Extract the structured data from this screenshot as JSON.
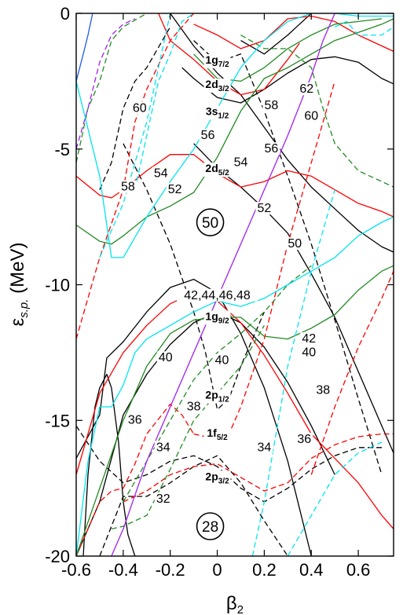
{
  "chart_data": {
    "type": "line",
    "xlabel": "β2",
    "xlabel_parts": {
      "base": "β",
      "sub": "2"
    },
    "ylabel": "εs.p. (MeV)",
    "ylabel_parts": {
      "base": "ε",
      "sub": "s.p.",
      "rest": " (MeV)"
    },
    "xlim": [
      -0.6,
      0.75
    ],
    "ylim": [
      -20,
      0
    ],
    "x_ticks": [
      -0.6,
      -0.4,
      -0.2,
      0,
      0.2,
      0.4,
      0.6
    ],
    "x_tick_labels": [
      "-0.6",
      "-0.4",
      "-0.2",
      "0",
      "0.2",
      "0.4",
      "0.6"
    ],
    "y_ticks": [
      0,
      -5,
      -10,
      -15,
      -20
    ],
    "y_tick_labels": [
      "0",
      "-5",
      "-10",
      "-15",
      "-20"
    ],
    "grid": false,
    "legend": "none",
    "orbital_labels": [
      {
        "base": "1g",
        "sub": "7/2",
        "x": 0,
        "y": -1.85
      },
      {
        "base": "2d",
        "sub": "3/2",
        "x": 0,
        "y": -2.75
      },
      {
        "base": "3s",
        "sub": "1/2",
        "x": 0,
        "y": -3.75
      },
      {
        "base": "2d",
        "sub": "5/2",
        "x": 0,
        "y": -5.85
      },
      {
        "base": "1g",
        "sub": "9/2",
        "x": 0,
        "y": -11.3
      },
      {
        "base": "2p",
        "sub": "1/2",
        "x": 0,
        "y": -14.2
      },
      {
        "base": "1f",
        "sub": "5/2",
        "x": 0,
        "y": -15.6
      },
      {
        "base": "2p",
        "sub": "3/2",
        "x": 0,
        "y": -17.2
      }
    ],
    "magic_numbers": [
      {
        "text": "60",
        "x": -0.33,
        "y": -3.6
      },
      {
        "text": "58",
        "x": 0.23,
        "y": -3.5
      },
      {
        "text": "62",
        "x": 0.38,
        "y": -2.9
      },
      {
        "text": "60",
        "x": 0.4,
        "y": -3.9
      },
      {
        "text": "56",
        "x": -0.04,
        "y": -4.6
      },
      {
        "text": "56",
        "x": 0.23,
        "y": -5.1
      },
      {
        "text": "54",
        "x": 0.1,
        "y": -5.6
      },
      {
        "text": "54",
        "x": -0.24,
        "y": -6.0
      },
      {
        "text": "58",
        "x": -0.38,
        "y": -6.5
      },
      {
        "text": "52",
        "x": -0.18,
        "y": -6.6
      },
      {
        "text": "52",
        "x": 0.2,
        "y": -7.3
      },
      {
        "text": "50",
        "x": 0.33,
        "y": -8.6
      },
      {
        "text": "42,44,46,48",
        "x": 0,
        "y": -10.5
      },
      {
        "text": "42",
        "x": 0.39,
        "y": -12.1
      },
      {
        "text": "40",
        "x": 0.39,
        "y": -12.6
      },
      {
        "text": "40",
        "x": -0.22,
        "y": -12.8
      },
      {
        "text": "40",
        "x": 0.02,
        "y": -12.9
      },
      {
        "text": "38",
        "x": 0.45,
        "y": -14.0
      },
      {
        "text": "38",
        "x": -0.1,
        "y": -14.6
      },
      {
        "text": "36",
        "x": -0.35,
        "y": -15.1
      },
      {
        "text": "36",
        "x": 0.37,
        "y": -15.8
      },
      {
        "text": "34",
        "x": -0.23,
        "y": -16.1
      },
      {
        "text": "34",
        "x": 0.2,
        "y": -16.1
      },
      {
        "text": "32",
        "x": -0.23,
        "y": -18.0
      }
    ],
    "circled_magic": [
      {
        "text": "50",
        "x": -0.03,
        "y": -7.7
      },
      {
        "text": "28",
        "x": -0.03,
        "y": -18.9
      }
    ],
    "series": [
      {
        "color": "#000000",
        "dash": false,
        "x": [
          -0.6,
          -0.5,
          -0.47,
          -0.4,
          -0.3,
          -0.2,
          -0.1,
          0,
          0.1,
          0.2,
          0.3,
          0.4
        ],
        "y": [
          -16.4,
          -14.8,
          -12.7,
          -12.1,
          -11.0,
          -10.1,
          -9.8,
          -10.3,
          -11.8,
          -13.8,
          -16.5,
          -20.0
        ]
      },
      {
        "color": "#000000",
        "dash": false,
        "x": [
          -0.6,
          -0.5,
          -0.4,
          -0.3,
          -0.2,
          -0.1,
          0,
          0.1,
          0.2,
          0.3,
          0.4,
          0.5
        ],
        "y": [
          -20.0,
          -18.0,
          -14.8,
          -13.3,
          -12.2,
          -11.4,
          -11.0,
          -11.4,
          -12.3,
          -13.6,
          -15.2,
          -17.0
        ]
      },
      {
        "color": "#000000",
        "dash": false,
        "x": [
          -0.57,
          -0.55,
          -0.52,
          -0.5,
          -0.47,
          -0.45,
          -0.42,
          -0.4,
          -0.38,
          -0.35
        ],
        "y": [
          -20.0,
          -17.0,
          -14.5,
          -13.8,
          -13.3,
          -13.8,
          -15.8,
          -18.0,
          -19.2,
          -20.0
        ]
      },
      {
        "color": "#000000",
        "dash": false,
        "x": [
          -0.1,
          0,
          0.1,
          0.2,
          0.3,
          0.4,
          0.5,
          0.6,
          0.7,
          0.75
        ],
        "y": [
          -4.8,
          -5.7,
          -6.4,
          -7.2,
          -8.1,
          -9.6,
          -11.2,
          -13.2,
          -15.2,
          -16.2
        ]
      },
      {
        "color": "#000000",
        "dash": false,
        "x": [
          -0.2,
          -0.1,
          0,
          0.1,
          0.2,
          0.3,
          0.4,
          0.5,
          0.6,
          0.7,
          0.75
        ],
        "y": [
          0.0,
          -1.2,
          -2.2,
          -3.0,
          -4.2,
          -5.4,
          -6.4,
          -7.2,
          -8.0,
          -8.6,
          -8.8
        ]
      },
      {
        "color": "#000000",
        "dash": false,
        "x": [
          -0.15,
          -0.1,
          0,
          0.1,
          0.2,
          0.3,
          0.4,
          0.5,
          0.6,
          0.7,
          0.75
        ],
        "y": [
          -2.0,
          -2.4,
          -3.1,
          -3.3,
          -2.8,
          -2.2,
          -1.7,
          -1.6,
          -1.8,
          -2.4,
          -2.6
        ]
      },
      {
        "color": "#000000",
        "dash": false,
        "x": [
          0.1,
          0.2,
          0.3,
          0.35,
          0.4,
          0.45,
          0.5
        ],
        "y": [
          -1.0,
          -1.5,
          -0.8,
          -0.4,
          0.0,
          0.3,
          0.6
        ]
      },
      {
        "color": "#000000",
        "dash": true,
        "x": [
          -0.4,
          -0.3,
          -0.2,
          -0.1,
          -0.05,
          0,
          0.05,
          0.1,
          0.2
        ],
        "y": [
          -4.8,
          -6.5,
          -8.5,
          -11.0,
          -12.5,
          -14.6,
          -14.2,
          -13.0,
          -11.0
        ]
      },
      {
        "color": "#000000",
        "dash": true,
        "x": [
          -0.1,
          0,
          0.1,
          0.2,
          0.3,
          0.4,
          0.5,
          0.6,
          0.7
        ],
        "y": [
          -1.0,
          -1.8,
          -1.5,
          -3.6,
          -6.0,
          -8.5,
          -11.3,
          -14.2,
          -17.0
        ]
      },
      {
        "color": "#000000",
        "dash": true,
        "x": [
          -0.6,
          -0.5,
          -0.4,
          -0.3,
          -0.2,
          -0.1,
          0,
          0.1,
          0.2,
          0.3,
          0.4,
          0.5,
          0.6,
          0.7
        ],
        "y": [
          -15.2,
          -16.5,
          -17.3,
          -17.0,
          -16.5,
          -16.3,
          -16.7,
          -17.5,
          -18.0,
          -17.5,
          -16.8,
          -16.3,
          -16.0,
          -16.0
        ]
      },
      {
        "color": "#000000",
        "dash": true,
        "x": [
          -0.5,
          -0.4,
          -0.3,
          -0.2,
          -0.1,
          0,
          0.1,
          0.2,
          0.3
        ],
        "y": [
          -20.0,
          -17.8,
          -17.8,
          -17.3,
          -16.7,
          -16.3,
          -17.3,
          -18.7,
          -20.0
        ]
      },
      {
        "color": "#000000",
        "dash": true,
        "x": [
          -0.5,
          -0.45,
          -0.4,
          -0.35,
          -0.3,
          -0.2
        ],
        "y": [
          -6.5,
          -5.5,
          -3.5,
          -2.5,
          -2.0,
          -0.5
        ]
      },
      {
        "color": "#ff0000",
        "dash": false,
        "x": [
          -0.6,
          -0.5,
          -0.4,
          -0.3,
          -0.2,
          -0.1,
          0,
          0.1,
          0.2,
          0.3,
          0.4,
          0.5,
          0.6,
          0.7,
          0.75
        ],
        "y": [
          -17.0,
          -14.0,
          -12.5,
          -11.5,
          -10.7,
          -10.3,
          -10.6,
          -11.4,
          -12.6,
          -14.0,
          -15.5,
          -16.4,
          -17.3,
          -18.5,
          -19.0
        ]
      },
      {
        "color": "#ff0000",
        "dash": false,
        "x": [
          -0.6,
          -0.5,
          -0.45,
          -0.4,
          -0.3,
          -0.2,
          -0.1,
          0,
          0.1,
          0.2,
          0.3,
          0.4,
          0.5,
          0.6,
          0.7,
          0.75
        ],
        "y": [
          -6.0,
          -6.7,
          -6.8,
          -6.5,
          -5.8,
          -5.2,
          -5.2,
          -5.9,
          -6.4,
          -6.2,
          -5.8,
          -6.0,
          -6.5,
          -7.0,
          -7.3,
          -7.5
        ]
      },
      {
        "color": "#ff0000",
        "dash": false,
        "x": [
          -0.25,
          -0.2,
          -0.1,
          0,
          0.1,
          0.2,
          0.3,
          0.35
        ],
        "y": [
          0.0,
          -1.0,
          -1.7,
          -2.5,
          -3.0,
          -2.8,
          -1.7,
          -1.1
        ]
      },
      {
        "color": "#ff0000",
        "dash": false,
        "x": [
          -0.1,
          0,
          0.1,
          0.2,
          0.3,
          0.4,
          0.5,
          0.6,
          0.7,
          0.75
        ],
        "y": [
          -0.4,
          -0.8,
          -1.3,
          -1.0,
          -0.2,
          -0.1,
          -0.3,
          -0.8,
          -1.2,
          -1.4
        ]
      },
      {
        "color": "#ff0000",
        "dash": true,
        "x": [
          -0.6,
          -0.5,
          -0.4,
          -0.35,
          -0.3,
          -0.2,
          -0.1
        ],
        "y": [
          -12.0,
          -9.0,
          -6.5,
          -4.0,
          -2.8,
          -1.0,
          0.0
        ]
      },
      {
        "color": "#ff0000",
        "dash": true,
        "x": [
          -0.4,
          -0.3,
          -0.2,
          -0.1,
          0,
          0.1,
          0.2,
          0.3,
          0.4,
          0.5,
          0.6,
          0.7,
          0.75
        ],
        "y": [
          -18.0,
          -17.6,
          -17.0,
          -16.7,
          -16.6,
          -17.1,
          -17.6,
          -17.3,
          -16.4,
          -15.9,
          -15.6,
          -15.5,
          -15.5
        ]
      },
      {
        "color": "#ff0000",
        "dash": true,
        "x": [
          -0.6,
          -0.5,
          -0.45,
          -0.4,
          -0.35,
          -0.3,
          -0.2,
          -0.15,
          -0.1
        ],
        "y": [
          -20.0,
          -18.0,
          -17.6,
          -17.5,
          -16.6,
          -15.5,
          -14.4,
          -14.8,
          -15.5
        ]
      },
      {
        "color": "#ff0000",
        "dash": true,
        "x": [
          -0.1,
          0,
          0.05,
          0.1,
          0.2,
          0.3,
          0.4,
          0.5
        ],
        "y": [
          -15.5,
          -15.7,
          -15.5,
          -14.5,
          -12.0,
          -8.5,
          -5.5,
          -2.5
        ]
      },
      {
        "color": "#ff0000",
        "dash": true,
        "x": [
          0.4,
          0.5,
          0.6,
          0.7,
          0.75
        ],
        "y": [
          -17.0,
          -14.5,
          -12.3,
          -10.5,
          -9.5
        ]
      },
      {
        "color": "#228b22",
        "dash": false,
        "x": [
          -0.6,
          -0.5,
          -0.45,
          -0.4,
          -0.3,
          -0.2,
          -0.1,
          0,
          0.1,
          0.2,
          0.3,
          0.4,
          0.5,
          0.6,
          0.7,
          0.75
        ],
        "y": [
          -7.8,
          -8.4,
          -8.5,
          -8.2,
          -7.5,
          -7.1,
          -6.6,
          -5.3,
          -3.6,
          -2.4,
          -2.0,
          -1.5,
          -1.0,
          -0.7,
          -0.4,
          -0.2
        ]
      },
      {
        "color": "#228b22",
        "dash": false,
        "x": [
          -0.6,
          -0.5,
          -0.4,
          -0.3,
          -0.2,
          -0.1,
          0,
          0.1,
          0.2,
          0.3,
          0.4,
          0.5,
          0.6,
          0.7,
          0.75
        ],
        "y": [
          -20.0,
          -17.5,
          -15.0,
          -13.0,
          -11.8,
          -11.3,
          -11.2,
          -11.2,
          -11.9,
          -12.0,
          -11.6,
          -11.1,
          -10.2,
          -9.5,
          -9.3
        ]
      },
      {
        "color": "#228b22",
        "dash": false,
        "x": [
          -0.1,
          0,
          0.1,
          0.2,
          0.3,
          0.4,
          0.5,
          0.6,
          0.7
        ],
        "y": [
          -1.5,
          -2.4,
          -2.5,
          -2.0,
          -1.3,
          -0.8,
          -0.4,
          -0.3,
          -0.2
        ]
      },
      {
        "color": "#228b22",
        "dash": true,
        "x": [
          -0.4,
          -0.3,
          -0.2,
          -0.1,
          0,
          0.1,
          0.2,
          0.3,
          0.4
        ],
        "y": [
          -18.0,
          -16.5,
          -15.0,
          -13.5,
          -12.5,
          -11.8,
          -11.0,
          -10.0,
          -9.3
        ]
      },
      {
        "color": "#228b22",
        "dash": true,
        "x": [
          -0.45,
          -0.4,
          -0.3,
          -0.2,
          -0.1,
          0,
          0.1,
          0.2
        ],
        "y": [
          -19.0,
          -18.9,
          -18.5,
          -16.8,
          -15.0,
          -14.0,
          -13.0,
          -11.5
        ]
      },
      {
        "color": "#228b22",
        "dash": true,
        "x": [
          -0.6,
          -0.55,
          -0.5,
          -0.45,
          -0.4,
          -0.3
        ],
        "y": [
          -5.5,
          -3.5,
          -2.5,
          -1.0,
          -0.5,
          0.0
        ]
      },
      {
        "color": "#228b22",
        "dash": true,
        "x": [
          0.1,
          0.2,
          0.3,
          0.4,
          0.45,
          0.5,
          0.6,
          0.7,
          0.75
        ],
        "y": [
          -0.8,
          -1.3,
          -1.3,
          -2.0,
          -3.5,
          -4.8,
          -5.8,
          -6.2,
          -6.4
        ]
      },
      {
        "color": "#00e5ee",
        "dash": false,
        "x": [
          -0.6,
          -0.5,
          -0.45,
          -0.4,
          -0.3,
          -0.2,
          -0.1,
          0,
          0.1,
          0.2,
          0.3,
          0.4,
          0.5,
          0.6,
          0.7,
          0.75
        ],
        "y": [
          -2.5,
          -6.0,
          -9.0,
          -9.0,
          -7.5,
          -6.2,
          -5.0,
          -3.5,
          -2.0,
          -1.0,
          -0.3,
          0.0,
          0.0,
          -0.1,
          -0.1,
          -0.1
        ]
      },
      {
        "color": "#00e5ee",
        "dash": false,
        "x": [
          -0.6,
          -0.55,
          -0.5,
          -0.45,
          -0.4,
          -0.35,
          -0.3,
          -0.2,
          -0.1,
          0,
          0.1,
          0.2,
          0.3,
          0.4,
          0.5,
          0.6,
          0.7,
          0.75
        ],
        "y": [
          -20.0,
          -16.5,
          -14.5,
          -14.5,
          -13.7,
          -12.5,
          -12.0,
          -11.5,
          -11.0,
          -10.6,
          -10.8,
          -10.5,
          -10.0,
          -9.5,
          -9.0,
          -8.2,
          -7.7,
          -7.5
        ]
      },
      {
        "color": "#00e5ee",
        "dash": true,
        "x": [
          -0.5,
          -0.4,
          -0.3,
          -0.25,
          -0.2
        ],
        "y": [
          -9.0,
          -7.0,
          -4.0,
          -2.0,
          0.0
        ]
      },
      {
        "color": "#00e5ee",
        "dash": true,
        "x": [
          -0.35,
          -0.3,
          -0.25,
          -0.2,
          -0.15,
          -0.1
        ],
        "y": [
          -6.5,
          -4.5,
          -2.5,
          -1.5,
          -0.3,
          0.0
        ]
      },
      {
        "color": "#00e5ee",
        "dash": true,
        "x": [
          0.3,
          0.4,
          0.5,
          0.6,
          0.7
        ],
        "y": [
          -20.0,
          -18.5,
          -17.0,
          -16.2,
          -15.8
        ]
      },
      {
        "color": "#00e5ee",
        "dash": true,
        "x": [
          0.15,
          0.2,
          0.25,
          0.3,
          0.4,
          0.5
        ],
        "y": [
          -20.0,
          -18.0,
          -15.5,
          -13.0,
          -9.5,
          -6.5
        ]
      },
      {
        "color": "#00e5ee",
        "dash": true,
        "x": [
          0.5,
          0.55,
          0.6,
          0.7,
          0.75
        ],
        "y": [
          -0.5,
          -0.3,
          -0.8,
          -0.8,
          -0.5
        ]
      },
      {
        "color": "#a020f0",
        "dash": false,
        "x": [
          -0.45,
          -0.4,
          -0.3,
          -0.2,
          -0.1,
          0,
          0.1,
          0.2,
          0.3,
          0.4,
          0.45,
          0.5
        ],
        "y": [
          -20.0,
          -19.0,
          -16.5,
          -14.5,
          -12.5,
          -10.5,
          -8.5,
          -6.5,
          -4.5,
          -2.3,
          -1.0,
          0.0
        ]
      },
      {
        "color": "#a020f0",
        "dash": true,
        "x": [
          -0.6,
          -0.55,
          -0.5,
          -0.45,
          -0.4,
          -0.35
        ],
        "y": [
          -5.0,
          -3.5,
          -1.8,
          -0.8,
          -0.4,
          -0.2
        ]
      },
      {
        "color": "#1e5ae8",
        "dash": false,
        "x": [
          -0.6,
          -0.57,
          -0.55,
          -0.53
        ],
        "y": [
          -2.5,
          -1.5,
          -0.8,
          0.0
        ]
      }
    ]
  }
}
